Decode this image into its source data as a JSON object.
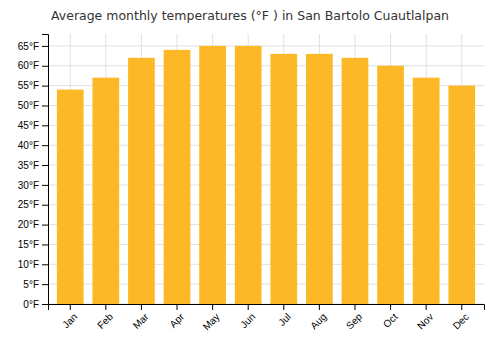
{
  "chart_data": {
    "type": "bar",
    "title": "Average monthly temperatures (°F ) in San Bartolo Cuautlalpan",
    "categories": [
      "Jan",
      "Feb",
      "Mar",
      "Apr",
      "May",
      "Jun",
      "Jul",
      "Aug",
      "Sep",
      "Oct",
      "Nov",
      "Dec"
    ],
    "values": [
      54,
      57,
      62,
      64,
      65,
      65,
      63,
      63,
      62,
      60,
      57,
      55
    ],
    "color": "#FDB827",
    "ylim": [
      0,
      68
    ],
    "yticks": [
      {
        "value": 0,
        "label": "0°F"
      },
      {
        "value": 5,
        "label": "5°F"
      },
      {
        "value": 10,
        "label": "10°F"
      },
      {
        "value": 15,
        "label": "15°F"
      },
      {
        "value": 20,
        "label": "20°F"
      },
      {
        "value": 25,
        "label": "25°F"
      },
      {
        "value": 30,
        "label": "30°F"
      },
      {
        "value": 35,
        "label": "35°F"
      },
      {
        "value": 40,
        "label": "40°F"
      },
      {
        "value": 45,
        "label": "45°F"
      },
      {
        "value": 50,
        "label": "50°F"
      },
      {
        "value": 55,
        "label": "55°F"
      },
      {
        "value": 60,
        "label": "60°F"
      },
      {
        "value": 65,
        "label": "65°F"
      }
    ],
    "grid": true
  }
}
